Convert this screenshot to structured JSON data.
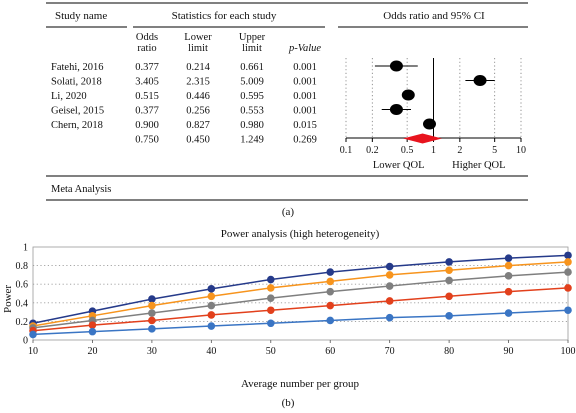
{
  "panel_a": {
    "headers": {
      "study_name": "Study name",
      "stats_group": "Statistics for each study",
      "odds_ratio_l1": "Odds",
      "odds_ratio_l2": "ratio",
      "lower_l1": "Lower",
      "lower_l2": "limit",
      "upper_l1": "Upper",
      "upper_l2": "limit",
      "p_value": "p-Value",
      "plot_group": "Odds ratio and 95% CI"
    },
    "footer": "Meta Analysis",
    "label": "(a)"
  },
  "panel_b": {
    "label": "(b)"
  },
  "chart_data": [
    {
      "type": "forest",
      "title": "Odds ratio and 95% CI",
      "x_scale": "log",
      "xlim": [
        0.1,
        10
      ],
      "x_ticks": [
        "0.1",
        "0.2",
        "0.5",
        "1",
        "2",
        "5",
        "10"
      ],
      "left_label": "Lower QOL",
      "right_label": "Higher QOL",
      "rows": [
        {
          "study": "Fatehi, 2016",
          "or": 0.377,
          "or_text": "0.377",
          "lower": 0.214,
          "lower_text": "0.214",
          "upper": 0.661,
          "upper_text": "0.661",
          "p": "0.001"
        },
        {
          "study": "Solati, 2018",
          "or": 3.405,
          "or_text": "3.405",
          "lower": 2.315,
          "lower_text": "2.315",
          "upper": 5.009,
          "upper_text": "5.009",
          "p": "0.001"
        },
        {
          "study": "Li, 2020",
          "or": 0.515,
          "or_text": "0.515",
          "lower": 0.446,
          "lower_text": "0.446",
          "upper": 0.595,
          "upper_text": "0.595",
          "p": "0.001"
        },
        {
          "study": "Geisel, 2015",
          "or": 0.377,
          "or_text": "0.377",
          "lower": 0.256,
          "lower_text": "0.256",
          "upper": 0.553,
          "upper_text": "0.553",
          "p": "0.001"
        },
        {
          "study": "Chern, 2018",
          "or": 0.9,
          "or_text": "0.900",
          "lower": 0.827,
          "lower_text": "0.827",
          "upper": 0.98,
          "upper_text": "0.980",
          "p": "0.015"
        }
      ],
      "summary": {
        "study": "",
        "or": 0.75,
        "or_text": "0.750",
        "lower": 0.45,
        "lower_text": "0.450",
        "upper": 1.249,
        "upper_text": "1.249",
        "p": "0.269"
      },
      "colors": {
        "marker": "#000000",
        "summary": "#e8141e"
      }
    },
    {
      "type": "line",
      "title": "Power analysis (high heterogeneity)",
      "xlabel": "Average number per group",
      "ylabel": "Power",
      "x": [
        10,
        20,
        30,
        40,
        50,
        60,
        70,
        80,
        90,
        100
      ],
      "xlim": [
        10,
        100
      ],
      "ylim": [
        0,
        1
      ],
      "x_ticks": [
        10,
        20,
        30,
        40,
        50,
        60,
        70,
        80,
        90,
        100
      ],
      "y_ticks": [
        "0",
        "0.2",
        "0.4",
        "0.6",
        "0.8",
        "1"
      ],
      "grid": "horizontal-dotted",
      "series": [
        {
          "color": "#253a8a",
          "values": [
            0.18,
            0.31,
            0.44,
            0.55,
            0.65,
            0.73,
            0.79,
            0.84,
            0.88,
            0.91
          ]
        },
        {
          "color": "#f7941d",
          "values": [
            0.15,
            0.26,
            0.37,
            0.47,
            0.56,
            0.63,
            0.7,
            0.75,
            0.8,
            0.84
          ]
        },
        {
          "color": "#7f7f7f",
          "values": [
            0.13,
            0.21,
            0.29,
            0.37,
            0.45,
            0.52,
            0.58,
            0.64,
            0.69,
            0.73
          ]
        },
        {
          "color": "#e2401c",
          "values": [
            0.1,
            0.16,
            0.21,
            0.27,
            0.32,
            0.37,
            0.42,
            0.47,
            0.52,
            0.56
          ]
        },
        {
          "color": "#3a75c4",
          "values": [
            0.06,
            0.09,
            0.12,
            0.15,
            0.18,
            0.21,
            0.24,
            0.26,
            0.29,
            0.32
          ]
        }
      ]
    }
  ]
}
